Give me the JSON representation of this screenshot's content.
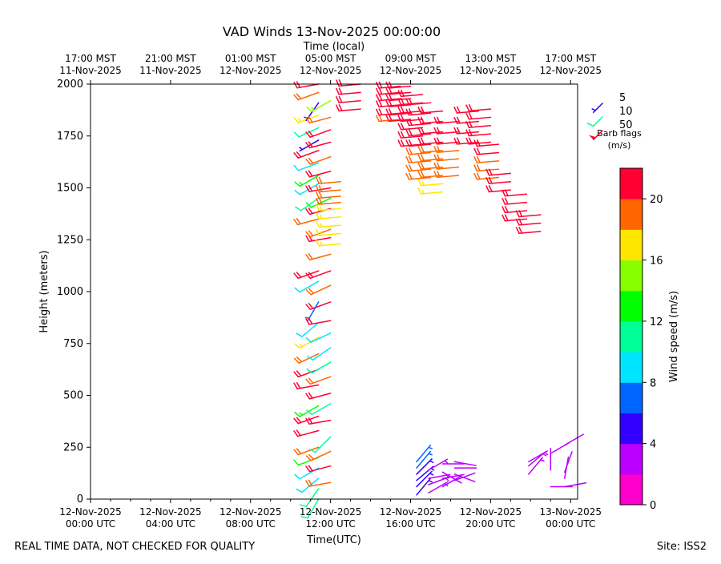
{
  "chart_data": {
    "type": "wind-barb",
    "title": "VAD Winds 13-Nov-2025 00:00:00",
    "xlabel_top": "Time (local)",
    "xlabel": "Time(UTC)",
    "ylabel": "Height (meters)",
    "ylim": [
      0,
      2000
    ],
    "xlim_hours": [
      0,
      24.35
    ],
    "y_ticks": [
      0,
      250,
      500,
      750,
      1000,
      1250,
      1500,
      1750,
      2000
    ],
    "x_ticks_bottom": [
      {
        "h": 0,
        "line1": "12-Nov-2025",
        "line2": "00:00 UTC"
      },
      {
        "h": 4,
        "line1": "12-Nov-2025",
        "line2": "04:00 UTC"
      },
      {
        "h": 8,
        "line1": "12-Nov-2025",
        "line2": "08:00 UTC"
      },
      {
        "h": 12,
        "line1": "12-Nov-2025",
        "line2": "12:00 UTC"
      },
      {
        "h": 16,
        "line1": "12-Nov-2025",
        "line2": "16:00 UTC"
      },
      {
        "h": 20,
        "line1": "12-Nov-2025",
        "line2": "20:00 UTC"
      },
      {
        "h": 24,
        "line1": "13-Nov-2025",
        "line2": "00:00 UTC"
      }
    ],
    "x_ticks_top": [
      {
        "h": 0,
        "line1": "17:00 MST",
        "line2": "11-Nov-2025"
      },
      {
        "h": 4,
        "line1": "21:00 MST",
        "line2": "11-Nov-2025"
      },
      {
        "h": 8,
        "line1": "01:00 MST",
        "line2": "12-Nov-2025"
      },
      {
        "h": 12,
        "line1": "05:00 MST",
        "line2": "12-Nov-2025"
      },
      {
        "h": 16,
        "line1": "09:00 MST",
        "line2": "12-Nov-2025"
      },
      {
        "h": 20,
        "line1": "13:00 MST",
        "line2": "12-Nov-2025"
      },
      {
        "h": 24,
        "line1": "17:00 MST",
        "line2": "12-Nov-2025"
      }
    ],
    "colorbar": {
      "label": "Wind speed (m/s)",
      "min": 0,
      "max": 22,
      "ticks": [
        0,
        4,
        8,
        12,
        16,
        20
      ],
      "colors": [
        "#ff00cc",
        "#bb00ff",
        "#3300ff",
        "#0066ff",
        "#00e5ff",
        "#00ff99",
        "#00ff00",
        "#88ff00",
        "#ffe600",
        "#ff6600",
        "#ff0033"
      ]
    },
    "legend": {
      "entries": [
        {
          "label": "5",
          "speed": 5,
          "color": "#3300ff"
        },
        {
          "label": "10",
          "speed": 10,
          "color": "#00ff99"
        },
        {
          "label": "50",
          "speed": 50,
          "color": "#ff0033"
        }
      ],
      "note_line1": "Barb flags",
      "note_line2": "(m/s)"
    },
    "series": [
      {
        "name": "col-11.4",
        "h": 11.4,
        "profile": [
          [
            0,
            11,
            210
          ],
          [
            50,
            10,
            215
          ],
          [
            100,
            8,
            230
          ],
          [
            150,
            9,
            240
          ],
          [
            200,
            12,
            250
          ],
          [
            250,
            18,
            250
          ],
          [
            330,
            22,
            255
          ],
          [
            400,
            20,
            250
          ],
          [
            450,
            13,
            240
          ],
          [
            550,
            20,
            260
          ],
          [
            625,
            20,
            250
          ],
          [
            700,
            18,
            245
          ],
          [
            780,
            16,
            240
          ],
          [
            850,
            8,
            230
          ],
          [
            950,
            6,
            210
          ],
          [
            1050,
            9,
            240
          ],
          [
            1100,
            20,
            250
          ],
          [
            1350,
            19,
            255
          ],
          [
            1450,
            10,
            235
          ],
          [
            1520,
            9,
            240
          ],
          [
            1560,
            13,
            240
          ],
          [
            1620,
            9,
            250
          ],
          [
            1680,
            20,
            250
          ],
          [
            1730,
            4,
            240
          ],
          [
            1790,
            10,
            245
          ],
          [
            1850,
            17,
            250
          ],
          [
            1910,
            4,
            215
          ],
          [
            1960,
            19,
            250
          ],
          [
            2000,
            20,
            260
          ]
        ]
      },
      {
        "name": "col-12.0",
        "h": 12.0,
        "profile": [
          [
            80,
            19,
            260
          ],
          [
            160,
            21,
            255
          ],
          [
            230,
            18,
            245
          ],
          [
            300,
            11,
            225
          ],
          [
            380,
            21,
            260
          ],
          [
            460,
            10,
            240
          ],
          [
            510,
            20,
            255
          ],
          [
            590,
            18,
            250
          ],
          [
            660,
            10,
            240
          ],
          [
            730,
            9,
            235
          ],
          [
            800,
            9,
            245
          ],
          [
            860,
            20,
            260
          ],
          [
            950,
            21,
            250
          ],
          [
            1030,
            18,
            245
          ],
          [
            1100,
            21,
            250
          ],
          [
            1180,
            19,
            255
          ],
          [
            1260,
            21,
            260
          ],
          [
            1300,
            18,
            250
          ],
          [
            1400,
            20,
            255
          ],
          [
            1450,
            12,
            245
          ],
          [
            1500,
            21,
            260
          ],
          [
            1580,
            20,
            255
          ],
          [
            1650,
            19,
            250
          ],
          [
            1720,
            21,
            255
          ],
          [
            1780,
            21,
            250
          ],
          [
            1840,
            18,
            255
          ],
          [
            1920,
            15,
            240
          ]
        ]
      },
      {
        "name": "col-12.5",
        "h": 12.5,
        "profile": [
          [
            1230,
            16,
            265
          ],
          [
            1280,
            16,
            265
          ],
          [
            1320,
            17,
            265
          ],
          [
            1360,
            17,
            265
          ],
          [
            1400,
            17,
            265
          ],
          [
            1430,
            18,
            265
          ],
          [
            1460,
            18,
            265
          ],
          [
            1490,
            18,
            265
          ],
          [
            1530,
            18,
            265
          ]
        ]
      },
      {
        "name": "col-13.5",
        "h": 13.5,
        "profile": [
          [
            1880,
            22,
            265
          ],
          [
            1920,
            22,
            265
          ],
          [
            1960,
            22,
            265
          ],
          [
            2000,
            22,
            265
          ]
        ]
      },
      {
        "name": "col-15.5",
        "h": 15.5,
        "profile": [
          [
            1830,
            19,
            265
          ],
          [
            1860,
            21,
            265
          ],
          [
            1900,
            21,
            265
          ],
          [
            1930,
            21,
            265
          ],
          [
            1960,
            22,
            265
          ],
          [
            1990,
            22,
            265
          ]
        ]
      },
      {
        "name": "col-16.0",
        "h": 16.0,
        "profile": [
          [
            1830,
            22,
            265
          ],
          [
            1860,
            22,
            265
          ],
          [
            1900,
            22,
            265
          ],
          [
            1930,
            22,
            265
          ],
          [
            1960,
            22,
            265
          ],
          [
            1990,
            22,
            265
          ]
        ]
      },
      {
        "name": "col-16.6",
        "h": 16.6,
        "profile": [
          [
            1710,
            22,
            265
          ],
          [
            1750,
            22,
            265
          ],
          [
            1790,
            22,
            265
          ],
          [
            1830,
            22,
            265
          ],
          [
            1870,
            22,
            265
          ],
          [
            1910,
            22,
            265
          ],
          [
            1950,
            22,
            265
          ]
        ]
      },
      {
        "name": "col-17.0",
        "h": 17.0,
        "profile": [
          [
            1550,
            19,
            265
          ],
          [
            1590,
            19,
            265
          ],
          [
            1630,
            19,
            265
          ],
          [
            1670,
            19,
            265
          ],
          [
            1710,
            22,
            265
          ],
          [
            1760,
            22,
            265
          ],
          [
            1810,
            22,
            265
          ],
          [
            1860,
            22,
            265
          ],
          [
            1910,
            22,
            265
          ]
        ]
      },
      {
        "name": "col-17.6",
        "h": 17.6,
        "profile": [
          [
            1480,
            16,
            265
          ],
          [
            1520,
            16,
            265
          ],
          [
            1560,
            19,
            265
          ],
          [
            1600,
            19,
            265
          ],
          [
            1640,
            19,
            265
          ],
          [
            1680,
            19,
            265
          ],
          [
            1720,
            22,
            265
          ],
          [
            1770,
            22,
            265
          ],
          [
            1820,
            22,
            265
          ],
          [
            1870,
            22,
            265
          ]
        ]
      },
      {
        "name": "col-18.4",
        "h": 18.4,
        "profile": [
          [
            1560,
            19,
            265
          ],
          [
            1600,
            19,
            265
          ],
          [
            1640,
            19,
            265
          ],
          [
            1680,
            19,
            265
          ],
          [
            1720,
            22,
            265
          ],
          [
            1770,
            22,
            265
          ],
          [
            1820,
            22,
            265
          ]
        ]
      },
      {
        "name": "col-19.4",
        "h": 19.4,
        "profile": [
          [
            1720,
            22,
            265
          ],
          [
            1770,
            22,
            265
          ],
          [
            1820,
            22,
            265
          ],
          [
            1870,
            22,
            265
          ]
        ]
      },
      {
        "name": "col-20.0",
        "h": 20.0,
        "profile": [
          [
            1720,
            22,
            265
          ],
          [
            1760,
            22,
            265
          ],
          [
            1800,
            22,
            265
          ],
          [
            1840,
            22,
            265
          ],
          [
            1880,
            22,
            265
          ]
        ]
      },
      {
        "name": "col-20.4",
        "h": 20.4,
        "profile": [
          [
            1550,
            19,
            265
          ],
          [
            1590,
            19,
            265
          ],
          [
            1630,
            19,
            265
          ],
          [
            1670,
            22,
            265
          ],
          [
            1710,
            22,
            265
          ]
        ]
      },
      {
        "name": "col-21.0",
        "h": 21.0,
        "profile": [
          [
            1490,
            22,
            265
          ],
          [
            1530,
            22,
            265
          ],
          [
            1570,
            22,
            265
          ]
        ]
      },
      {
        "name": "col-21.8",
        "h": 21.8,
        "profile": [
          [
            1350,
            22,
            265
          ],
          [
            1390,
            22,
            265
          ],
          [
            1430,
            22,
            265
          ],
          [
            1470,
            22,
            265
          ]
        ]
      },
      {
        "name": "col-22.5",
        "h": 22.5,
        "profile": [
          [
            1290,
            22,
            265
          ],
          [
            1330,
            22,
            265
          ],
          [
            1370,
            22,
            265
          ]
        ]
      },
      {
        "name": "col-16.3",
        "h": 16.3,
        "profile": [
          [
            20,
            4,
            40
          ],
          [
            60,
            5,
            45
          ],
          [
            90,
            5,
            50
          ],
          [
            120,
            5,
            45
          ],
          [
            150,
            6,
            40
          ],
          [
            180,
            6,
            40
          ]
        ]
      },
      {
        "name": "col-16.9",
        "h": 16.9,
        "profile": [
          [
            30,
            3,
            60
          ],
          [
            70,
            3,
            70
          ],
          [
            100,
            3,
            80
          ],
          [
            140,
            3,
            60
          ]
        ]
      },
      {
        "name": "col-17.6b",
        "h": 17.6,
        "profile": [
          [
            60,
            2,
            60
          ],
          [
            100,
            2,
            80
          ],
          [
            130,
            2,
            120
          ],
          [
            170,
            2,
            90
          ]
        ]
      },
      {
        "name": "col-18.2",
        "h": 18.2,
        "profile": [
          [
            90,
            2,
            70
          ],
          [
            120,
            2,
            110
          ],
          [
            150,
            2,
            90
          ],
          [
            180,
            2,
            100
          ]
        ]
      },
      {
        "name": "col-21.9",
        "h": 21.9,
        "profile": [
          [
            120,
            3,
            40
          ],
          [
            160,
            3,
            50
          ],
          [
            180,
            3,
            60
          ]
        ]
      },
      {
        "name": "col-23.0",
        "h": 23.0,
        "profile": [
          [
            60,
            2,
            90
          ],
          [
            140,
            2,
            0
          ],
          [
            220,
            2,
            60
          ]
        ]
      },
      {
        "name": "col-23.7",
        "h": 23.7,
        "profile": [
          [
            60,
            2,
            80
          ],
          [
            100,
            2,
            10
          ],
          [
            130,
            2,
            20
          ],
          [
            260,
            2,
            60
          ]
        ]
      }
    ]
  },
  "footer": {
    "left_note": "REAL TIME DATA, NOT CHECKED FOR QUALITY",
    "site": "Site: ISS2"
  }
}
